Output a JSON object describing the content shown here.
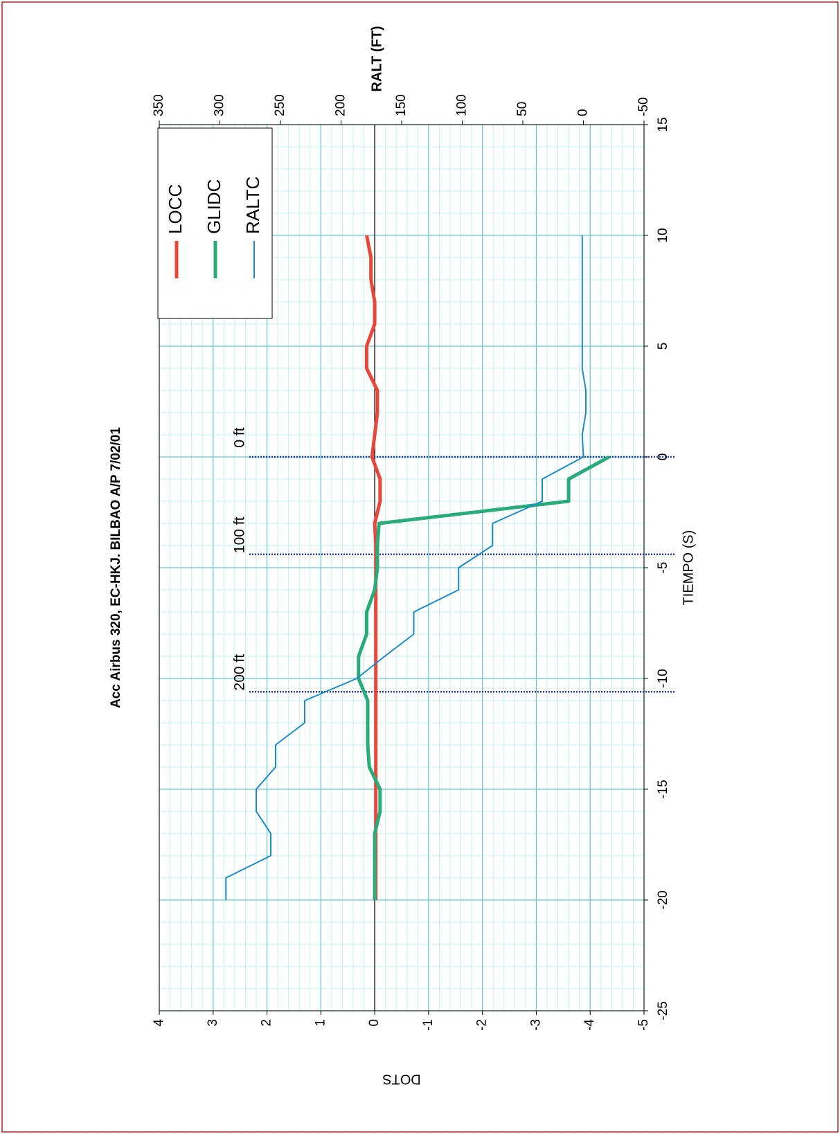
{
  "chart_data": {
    "type": "line",
    "title": "Acc Airbus 320, EC-HKJ.  BILBAO A/P 7/02/01",
    "xlabel": "TIEMPO (S)",
    "ylabel": "DOTS",
    "y2label": "RALT (FT)",
    "x": [
      -20,
      -19,
      -18,
      -17,
      -16,
      -15,
      -14,
      -13,
      -12,
      -11,
      -10,
      -9,
      -8,
      -7,
      -6,
      -5,
      -4,
      -3,
      -2,
      -1,
      0,
      1,
      2,
      3,
      4,
      5,
      6,
      7,
      8,
      9,
      10
    ],
    "series": [
      {
        "name": "LOCC",
        "color": "#e8483a",
        "values": [
          -0.02,
          -0.02,
          -0.02,
          -0.02,
          -0.02,
          -0.02,
          -0.02,
          -0.02,
          -0.02,
          -0.02,
          -0.02,
          -0.02,
          -0.02,
          -0.02,
          -0.02,
          -0.02,
          -0.02,
          0,
          -0.1,
          -0.1,
          0.05,
          0,
          -0.05,
          -0.05,
          0.15,
          0.15,
          0,
          0,
          0.07,
          0.07,
          0.15
        ]
      },
      {
        "name": "GLIDC",
        "color": "#2aab7a",
        "values": [
          0,
          0,
          0,
          0,
          -0.1,
          -0.1,
          0.1,
          0.13,
          0.13,
          0.13,
          0.3,
          0.3,
          0.15,
          0.15,
          0,
          -0.05,
          -0.05,
          -0.08,
          -3.6,
          -3.6,
          -4.35,
          null,
          null,
          null,
          null,
          null,
          null,
          null,
          null,
          null,
          null
        ]
      },
      {
        "name": "RALTC",
        "color": "#1a8ac8",
        "axis": "y2",
        "values": [
          295,
          295,
          258,
          258,
          270,
          270,
          254,
          254,
          230,
          230,
          187,
          164,
          140,
          140,
          103,
          103,
          75,
          75,
          34,
          34,
          0,
          1,
          -2,
          -2,
          1,
          1,
          1,
          1,
          1,
          1,
          1
        ]
      }
    ],
    "xlim": [
      -25,
      15
    ],
    "xticks": [
      -25,
      -20,
      -15,
      -10,
      -5,
      0,
      5,
      10,
      15
    ],
    "ylim": [
      -5,
      4
    ],
    "yticks": [
      -5,
      -4,
      -3,
      -2,
      -1,
      0,
      1,
      2,
      3,
      4
    ],
    "y2lim": [
      -50,
      350
    ],
    "y2ticks": [
      -50,
      0,
      50,
      100,
      150,
      200,
      250,
      300,
      350
    ],
    "annotations": [
      {
        "x": 0,
        "text": "0 ft"
      },
      {
        "x": -4.4,
        "text": "100 ft"
      },
      {
        "x": -10.6,
        "text": "200 ft"
      }
    ],
    "grid": true,
    "legend": "upper right"
  }
}
